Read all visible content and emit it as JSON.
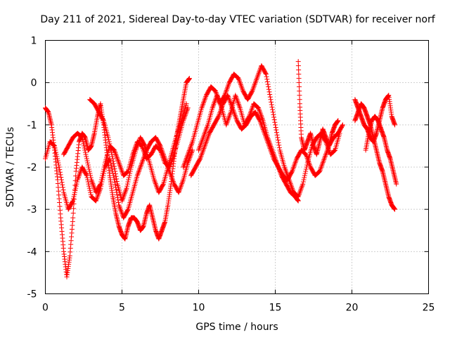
{
  "chart_data": {
    "type": "scatter",
    "title": "Day 211 of 2021, Sidereal Day-to-day VTEC variation (SDTVAR) for receiver norf",
    "xlabel": "GPS time / hours",
    "ylabel": "SDTVAR / TECUs",
    "xlim": [
      0,
      25
    ],
    "ylim": [
      -5,
      1
    ],
    "xticks": [
      0,
      5,
      10,
      15,
      20,
      25
    ],
    "yticks": [
      1,
      0,
      -1,
      -2,
      -3,
      -4,
      -5
    ],
    "grid": true,
    "marker": "plus",
    "color": "#ff0000",
    "series": [
      {
        "name": "trace-a",
        "x": [
          0.0,
          0.2,
          0.4,
          0.6,
          0.8,
          1.0,
          1.2,
          1.4,
          1.6,
          1.8,
          2.0,
          2.2,
          2.4,
          2.6,
          2.8,
          3.0,
          3.2,
          3.4,
          3.6,
          3.8,
          4.0,
          4.2,
          4.4,
          4.6,
          4.8,
          5.0,
          5.2,
          5.4,
          5.6,
          5.8,
          6.0,
          6.2,
          6.4,
          6.6,
          6.8,
          7.0,
          7.2,
          7.4,
          7.6,
          7.8,
          8.0,
          8.2,
          8.4,
          8.6,
          8.8,
          9.0,
          9.2,
          9.4
        ],
        "y": [
          -0.6,
          -0.7,
          -1.0,
          -1.6,
          -2.3,
          -3.2,
          -4.0,
          -4.6,
          -4.1,
          -3.2,
          -2.1,
          -1.4,
          -1.2,
          -1.3,
          -1.6,
          -1.5,
          -1.2,
          -0.8,
          -0.5,
          -1.0,
          -1.6,
          -2.2,
          -2.7,
          -3.1,
          -3.4,
          -3.6,
          -3.7,
          -3.4,
          -3.2,
          -3.2,
          -3.3,
          -3.5,
          -3.4,
          -3.1,
          -2.9,
          -3.2,
          -3.5,
          -3.7,
          -3.5,
          -3.3,
          -2.9,
          -2.4,
          -1.8,
          -1.2,
          -0.8,
          -0.4,
          0.0,
          0.1
        ]
      },
      {
        "name": "trace-b",
        "x": [
          0.0,
          0.3,
          0.6,
          0.9,
          1.2,
          1.5,
          1.8,
          2.1,
          2.4,
          2.7,
          3.0,
          3.3,
          3.6,
          3.9,
          4.2,
          4.5,
          4.8,
          5.1,
          5.4,
          5.7,
          6.0,
          6.3,
          6.6,
          6.9,
          7.2,
          7.5,
          7.8,
          8.1,
          8.4,
          8.7,
          9.0,
          9.3,
          9.6
        ],
        "y": [
          -1.8,
          -1.4,
          -1.5,
          -2.0,
          -2.6,
          -3.0,
          -2.8,
          -2.3,
          -2.0,
          -2.2,
          -2.7,
          -2.8,
          -2.5,
          -2.0,
          -1.8,
          -2.3,
          -2.9,
          -3.2,
          -3.0,
          -2.6,
          -2.2,
          -1.9,
          -1.6,
          -1.4,
          -1.3,
          -1.5,
          -1.8,
          -2.1,
          -2.4,
          -2.6,
          -2.3,
          -1.9,
          -1.6
        ]
      },
      {
        "name": "trace-c",
        "x": [
          1.2,
          1.5,
          1.8,
          2.1,
          2.4,
          2.7,
          3.0,
          3.3,
          3.6,
          3.9,
          4.2,
          4.5,
          4.8,
          5.1,
          5.4,
          5.7,
          6.0,
          6.3,
          6.6,
          6.9,
          7.2,
          7.5,
          7.8,
          8.1,
          8.4,
          8.7,
          9.0,
          9.3
        ],
        "y": [
          -1.7,
          -1.5,
          -1.3,
          -1.2,
          -1.3,
          -1.8,
          -2.3,
          -2.6,
          -2.4,
          -1.9,
          -1.5,
          -1.6,
          -1.9,
          -2.2,
          -2.1,
          -1.7,
          -1.4,
          -1.5,
          -1.8,
          -1.7,
          -1.5,
          -1.6,
          -1.9,
          -2.0,
          -1.7,
          -1.3,
          -0.9,
          -0.6
        ]
      },
      {
        "name": "trace-d",
        "x": [
          2.9,
          3.2,
          3.5,
          3.8,
          4.1,
          4.4,
          4.7,
          5.0,
          5.3,
          5.6,
          5.9,
          6.2,
          6.5,
          6.8,
          7.1,
          7.4,
          7.7,
          8.0,
          8.3,
          8.6,
          8.9,
          9.2
        ],
        "y": [
          -0.4,
          -0.5,
          -0.7,
          -0.9,
          -1.3,
          -1.8,
          -2.4,
          -2.8,
          -2.5,
          -2.0,
          -1.6,
          -1.3,
          -1.5,
          -1.9,
          -2.3,
          -2.6,
          -2.4,
          -2.0,
          -1.6,
          -1.2,
          -0.9,
          -0.5
        ]
      },
      {
        "name": "trace-e",
        "x": [
          9.0,
          9.3,
          9.6,
          9.9,
          10.2,
          10.5,
          10.8,
          11.1,
          11.4,
          11.7,
          12.0,
          12.3,
          12.6,
          12.9,
          13.2,
          13.5,
          13.8,
          14.1,
          14.4,
          14.7,
          15.0,
          15.3,
          15.6,
          15.9,
          16.2,
          16.5,
          16.8,
          17.1,
          17.4,
          17.7,
          18.0,
          18.3,
          18.6,
          18.9,
          19.2
        ],
        "y": [
          -2.0,
          -1.7,
          -1.4,
          -1.0,
          -0.6,
          -0.3,
          -0.1,
          -0.2,
          -0.5,
          -0.3,
          0.0,
          0.2,
          0.1,
          -0.2,
          -0.4,
          -0.2,
          0.1,
          0.4,
          0.2,
          -0.4,
          -1.0,
          -1.6,
          -2.0,
          -2.3,
          -2.6,
          -2.7,
          -2.4,
          -1.9,
          -1.5,
          -1.3,
          -1.2,
          -1.4,
          -1.7,
          -1.6,
          -1.2
        ]
      },
      {
        "name": "trace-f",
        "x": [
          9.5,
          9.8,
          10.1,
          10.4,
          10.7,
          11.0,
          11.3,
          11.6,
          11.9,
          12.2,
          12.5,
          12.8,
          13.1,
          13.4,
          13.7,
          14.0,
          14.3,
          14.6,
          14.9,
          15.2,
          15.5,
          15.8,
          16.1,
          16.4,
          16.7,
          17.0,
          17.3,
          17.6,
          17.9,
          18.2,
          18.5,
          18.8,
          19.1,
          19.4
        ],
        "y": [
          -2.2,
          -2.0,
          -1.8,
          -1.5,
          -1.2,
          -1.0,
          -0.8,
          -0.5,
          -0.3,
          -0.6,
          -0.9,
          -1.1,
          -1.0,
          -0.8,
          -0.7,
          -0.9,
          -1.2,
          -1.5,
          -1.8,
          -2.0,
          -2.2,
          -2.3,
          -2.1,
          -1.8,
          -1.6,
          -1.7,
          -2.0,
          -2.2,
          -2.1,
          -1.8,
          -1.5,
          -1.3,
          -1.2,
          -1.0
        ]
      },
      {
        "name": "trace-g",
        "x": [
          10.0,
          10.3,
          10.6,
          10.9,
          11.2,
          11.5,
          11.8,
          12.1,
          12.4,
          12.7,
          13.0,
          13.3,
          13.6,
          13.9,
          14.2,
          14.5,
          14.8,
          15.1,
          15.4,
          15.7,
          16.0,
          16.3,
          16.5
        ],
        "y": [
          -1.6,
          -1.3,
          -1.0,
          -0.6,
          -0.3,
          -0.6,
          -1.0,
          -0.7,
          -0.3,
          -0.6,
          -1.0,
          -0.8,
          -0.5,
          -0.6,
          -0.9,
          -1.3,
          -1.6,
          -1.9,
          -2.2,
          -2.4,
          -2.6,
          -2.7,
          -2.8
        ]
      },
      {
        "name": "trace-h",
        "x": [
          16.5,
          16.6,
          16.7,
          16.9,
          17.1,
          17.3,
          17.5,
          17.7,
          17.9,
          18.1,
          18.3,
          18.5,
          18.7,
          18.9,
          19.1
        ],
        "y": [
          0.5,
          -0.5,
          -1.3,
          -1.6,
          -1.4,
          -1.2,
          -1.5,
          -1.7,
          -1.4,
          -1.1,
          -1.3,
          -1.5,
          -1.2,
          -1.0,
          -0.9
        ]
      },
      {
        "name": "trace-i",
        "x": [
          20.2,
          20.4,
          20.6,
          20.8,
          21.0,
          21.2,
          21.4,
          21.6,
          21.8,
          22.0,
          22.2,
          22.4,
          22.6,
          22.8
        ],
        "y": [
          -0.4,
          -0.6,
          -0.8,
          -1.0,
          -1.1,
          -1.3,
          -1.4,
          -1.2,
          -0.9,
          -0.6,
          -0.4,
          -0.3,
          -0.8,
          -1.0
        ]
      },
      {
        "name": "trace-j",
        "x": [
          20.2,
          20.4,
          20.6,
          20.8,
          21.0,
          21.2,
          21.4,
          21.6,
          21.8,
          22.0,
          22.2,
          22.4,
          22.6,
          22.8
        ],
        "y": [
          -0.9,
          -0.7,
          -0.5,
          -0.6,
          -0.8,
          -1.0,
          -1.3,
          -1.6,
          -1.9,
          -2.1,
          -2.4,
          -2.7,
          -2.9,
          -3.0
        ]
      },
      {
        "name": "trace-k",
        "x": [
          20.9,
          21.1,
          21.3,
          21.5,
          21.7,
          21.9,
          22.1,
          22.3,
          22.5,
          22.7,
          22.9
        ],
        "y": [
          -1.6,
          -1.2,
          -0.9,
          -0.8,
          -0.9,
          -1.1,
          -1.3,
          -1.6,
          -1.8,
          -2.1,
          -2.4
        ]
      }
    ]
  }
}
